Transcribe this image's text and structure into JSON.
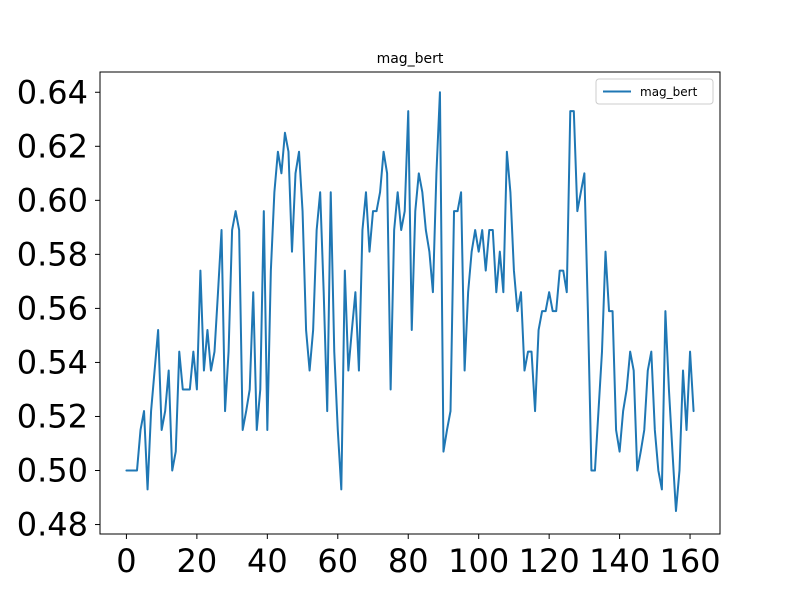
{
  "chart_data": {
    "type": "line",
    "title": "mag_bert",
    "xlabel": "",
    "ylabel": "",
    "xlim": [
      -7.5,
      168.5
    ],
    "ylim": [
      0.4765,
      0.6475
    ],
    "xticks": [
      0,
      20,
      40,
      60,
      80,
      100,
      120,
      140,
      160
    ],
    "xtick_labels": [
      "0",
      "20",
      "40",
      "60",
      "80",
      "100",
      "120",
      "140",
      "160"
    ],
    "yticks": [
      0.48,
      0.5,
      0.52,
      0.54,
      0.56,
      0.58,
      0.6,
      0.62,
      0.64
    ],
    "ytick_labels": [
      "0.48",
      "0.50",
      "0.52",
      "0.54",
      "0.56",
      "0.58",
      "0.60",
      "0.62",
      "0.64"
    ],
    "grid": false,
    "legend": {
      "position": "top-right",
      "entries": [
        "mag_bert"
      ]
    },
    "series": [
      {
        "name": "mag_bert",
        "color": "#1f77b4",
        "x": [
          0,
          1,
          2,
          3,
          4,
          5,
          6,
          7,
          8,
          9,
          10,
          11,
          12,
          13,
          14,
          15,
          16,
          17,
          18,
          19,
          20,
          21,
          22,
          23,
          24,
          25,
          26,
          27,
          28,
          29,
          30,
          31,
          32,
          33,
          34,
          35,
          36,
          37,
          38,
          39,
          40,
          41,
          42,
          43,
          44,
          45,
          46,
          47,
          48,
          49,
          50,
          51,
          52,
          53,
          54,
          55,
          56,
          57,
          58,
          59,
          60,
          61,
          62,
          63,
          64,
          65,
          66,
          67,
          68,
          69,
          70,
          71,
          72,
          73,
          74,
          75,
          76,
          77,
          78,
          79,
          80,
          81,
          82,
          83,
          84,
          85,
          86,
          87,
          88,
          89,
          90,
          91,
          92,
          93,
          94,
          95,
          96,
          97,
          98,
          99,
          100,
          101,
          102,
          103,
          104,
          105,
          106,
          107,
          108,
          109,
          110,
          111,
          112,
          113,
          114,
          115,
          116,
          117,
          118,
          119,
          120,
          121,
          122,
          123,
          124,
          125,
          126,
          127,
          128,
          129,
          130,
          131,
          132,
          133,
          134,
          135,
          136,
          137,
          138,
          139,
          140,
          141,
          142,
          143,
          144,
          145,
          146,
          147,
          148,
          149,
          150,
          151,
          152,
          153,
          154,
          155,
          156,
          157,
          158,
          159,
          160,
          161
        ],
        "values": [
          0.5,
          0.5,
          0.5,
          0.5,
          0.515,
          0.522,
          0.493,
          0.522,
          0.537,
          0.552,
          0.515,
          0.522,
          0.537,
          0.5,
          0.507,
          0.544,
          0.53,
          0.53,
          0.53,
          0.544,
          0.53,
          0.574,
          0.537,
          0.552,
          0.537,
          0.544,
          0.566,
          0.589,
          0.522,
          0.544,
          0.589,
          0.596,
          0.589,
          0.515,
          0.522,
          0.53,
          0.566,
          0.515,
          0.53,
          0.596,
          0.515,
          0.574,
          0.603,
          0.618,
          0.61,
          0.625,
          0.618,
          0.581,
          0.61,
          0.618,
          0.596,
          0.552,
          0.537,
          0.552,
          0.589,
          0.603,
          0.566,
          0.522,
          0.603,
          0.544,
          0.515,
          0.493,
          0.574,
          0.537,
          0.552,
          0.566,
          0.537,
          0.589,
          0.603,
          0.581,
          0.596,
          0.596,
          0.603,
          0.618,
          0.61,
          0.53,
          0.589,
          0.603,
          0.589,
          0.596,
          0.633,
          0.552,
          0.596,
          0.61,
          0.603,
          0.589,
          0.581,
          0.566,
          0.61,
          0.64,
          0.507,
          0.515,
          0.522,
          0.596,
          0.596,
          0.603,
          0.537,
          0.566,
          0.581,
          0.589,
          0.581,
          0.589,
          0.574,
          0.589,
          0.589,
          0.566,
          0.581,
          0.566,
          0.618,
          0.603,
          0.574,
          0.559,
          0.566,
          0.537,
          0.544,
          0.544,
          0.522,
          0.552,
          0.559,
          0.559,
          0.566,
          0.559,
          0.559,
          0.574,
          0.574,
          0.566,
          0.633,
          0.633,
          0.596,
          0.603,
          0.61,
          0.559,
          0.5,
          0.5,
          0.522,
          0.544,
          0.581,
          0.559,
          0.559,
          0.515,
          0.507,
          0.522,
          0.53,
          0.544,
          0.537,
          0.5,
          0.507,
          0.515,
          0.537,
          0.544,
          0.515,
          0.5,
          0.493,
          0.559,
          0.53,
          0.507,
          0.485,
          0.5,
          0.537,
          0.515,
          0.544,
          0.522
        ]
      }
    ]
  }
}
